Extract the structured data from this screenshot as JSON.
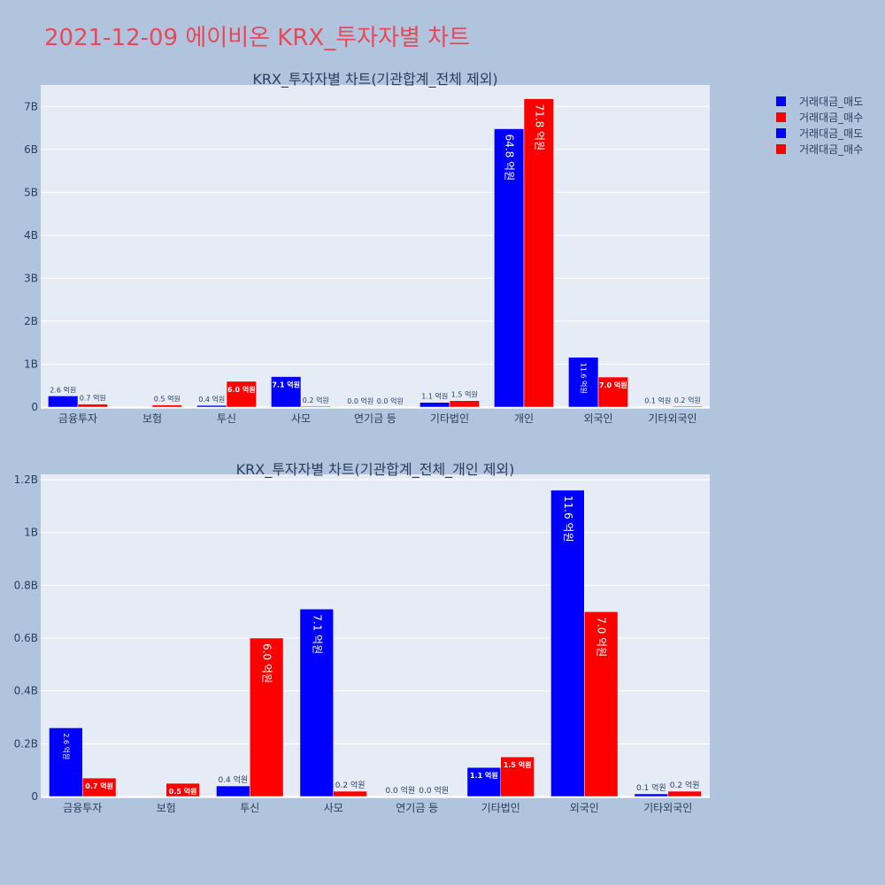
{
  "page_title": "2021-12-09 에이비온 KRX_투자자별 차트",
  "colors": {
    "sell": "#0000ff",
    "buy": "#ff0000",
    "plot_bg": "#e5ecf6",
    "page_bg": "#b0c4de"
  },
  "legend": [
    {
      "label": "거래대금_매도",
      "color": "#0000ff"
    },
    {
      "label": "거래대금_매수",
      "color": "#ff0000"
    },
    {
      "label": "거래대금_매도",
      "color": "#0000ff"
    },
    {
      "label": "거래대금_매수",
      "color": "#ff0000"
    }
  ],
  "chart_data": [
    {
      "type": "bar",
      "title": "KRX_투자자별 차트(기관합계_전체 제외)",
      "categories": [
        "금융투자",
        "보험",
        "투신",
        "사모",
        "연기금 등",
        "기타법인",
        "개인",
        "외국인",
        "기타외국인"
      ],
      "series": [
        {
          "name": "거래대금_매도",
          "values": [
            0.26,
            0.0,
            0.04,
            0.71,
            0.0,
            0.11,
            6.48,
            1.16,
            0.01
          ],
          "labels": [
            "2.6 억원",
            "",
            "0.4 억원",
            "7.1 억원",
            "0.0 억원",
            "1.1 억원",
            "64.8 억원",
            "11.6 억원",
            "0.1 억원"
          ]
        },
        {
          "name": "거래대금_매수",
          "values": [
            0.07,
            0.05,
            0.6,
            0.02,
            0.0,
            0.15,
            7.18,
            0.7,
            0.02
          ],
          "labels": [
            "0.7 억원",
            "0.5 억원",
            "6.0 억원",
            "0.2 억원",
            "0.0 억원",
            "1.5 억원",
            "71.8 억원",
            "7.0 억원",
            "0.2 억원"
          ]
        }
      ],
      "ylim": [
        0,
        7.5
      ],
      "yticks": [
        0,
        1,
        2,
        3,
        4,
        5,
        6,
        7
      ],
      "ytick_labels": [
        "0",
        "1B",
        "2B",
        "3B",
        "4B",
        "5B",
        "6B",
        "7B"
      ],
      "value_unit": "B"
    },
    {
      "type": "bar",
      "title": "KRX_투자자별 차트(기관합계_전체_개인 제외)",
      "categories": [
        "금융투자",
        "보험",
        "투신",
        "사모",
        "연기금 등",
        "기타법인",
        "외국인",
        "기타외국인"
      ],
      "series": [
        {
          "name": "거래대금_매도",
          "values": [
            0.26,
            0.0,
            0.04,
            0.71,
            0.0,
            0.11,
            1.16,
            0.01
          ],
          "labels": [
            "2.6 억원",
            "",
            "0.4 억원",
            "7.1 억원",
            "0.0 억원",
            "1.1 억원",
            "11.6 억원",
            "0.1 억원"
          ]
        },
        {
          "name": "거래대금_매수",
          "values": [
            0.07,
            0.05,
            0.6,
            0.02,
            0.0,
            0.15,
            0.7,
            0.02
          ],
          "labels": [
            "0.7 억원",
            "0.5 억원",
            "6.0 억원",
            "0.2 억원",
            "0.0 억원",
            "1.5 억원",
            "7.0 억원",
            "0.2 억원"
          ]
        }
      ],
      "ylim": [
        0,
        1.22
      ],
      "yticks": [
        0,
        0.2,
        0.4,
        0.6,
        0.8,
        1.0,
        1.2
      ],
      "ytick_labels": [
        "0",
        "0.2B",
        "0.4B",
        "0.6B",
        "0.8B",
        "1B",
        "1.2B"
      ],
      "value_unit": "B"
    }
  ]
}
